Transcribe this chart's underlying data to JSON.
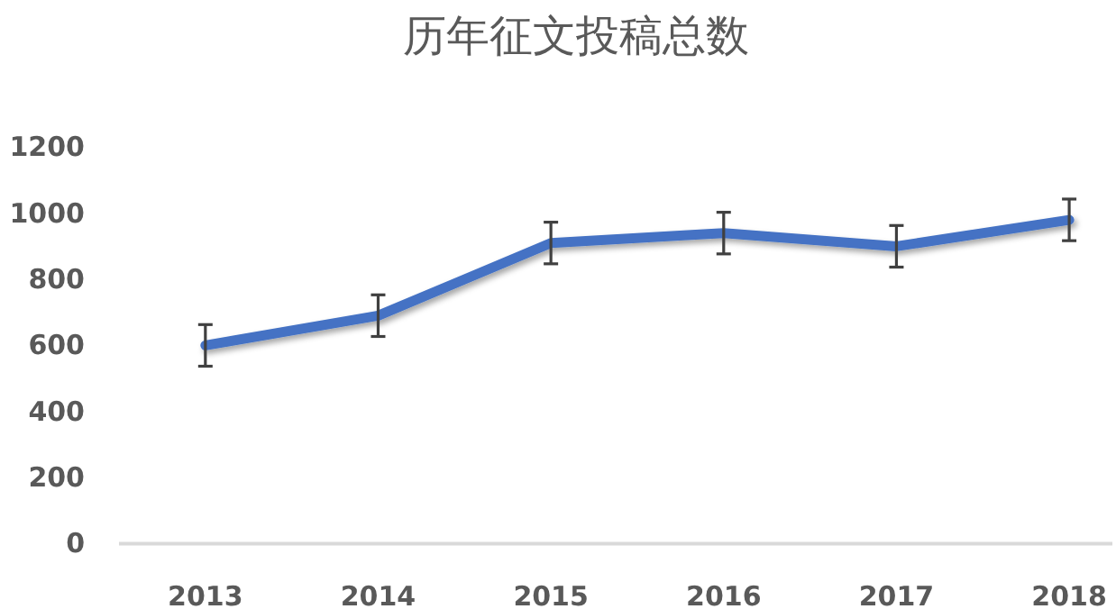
{
  "chart_data": {
    "type": "line",
    "title": "历年征文投稿总数",
    "categories": [
      "2013",
      "2014",
      "2015",
      "2016",
      "2017",
      "2018"
    ],
    "series": [
      {
        "color": "#4472c4",
        "values": [
          600,
          690,
          910,
          940,
          900,
          980
        ],
        "errors": [
          63,
          63,
          63,
          63,
          63,
          63
        ]
      }
    ],
    "ylim": [
      0,
      1200
    ],
    "yticks": [
      0,
      200,
      400,
      600,
      800,
      1000,
      1200
    ],
    "grid": false,
    "marker": "none",
    "line_style": "solid"
  }
}
